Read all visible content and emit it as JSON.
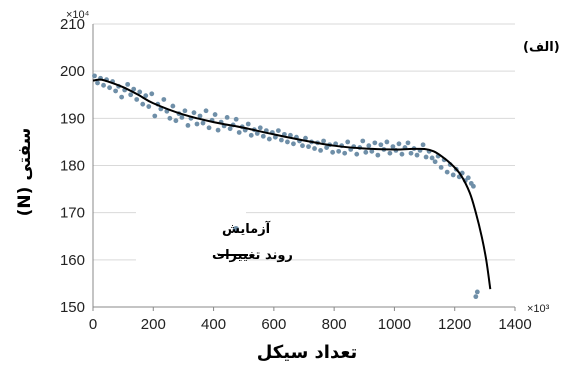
{
  "chart_data": {
    "type": "scatter",
    "title": "",
    "panel_label": "(الف)",
    "xlabel": "تعداد سیکل",
    "ylabel": "سفتی (N)",
    "x_multiplier": "×10³",
    "y_multiplier": "×10⁴",
    "xlim": [
      0,
      1400
    ],
    "ylim": [
      150,
      210
    ],
    "x_ticks": [
      "0",
      "200",
      "400",
      "600",
      "800",
      "1000",
      "1200",
      "1400"
    ],
    "y_ticks": [
      "150",
      "160",
      "170",
      "180",
      "190",
      "200",
      "210"
    ],
    "grid": "horizontal",
    "legend_position": "lower-left",
    "colors": {
      "points": "#6f8fa8",
      "trend": "#000000",
      "grid": "#d9d9d9"
    },
    "series": [
      {
        "name": "آزمایش",
        "kind": "scatter",
        "x": [
          5,
          15,
          25,
          35,
          45,
          55,
          65,
          75,
          85,
          95,
          105,
          115,
          125,
          135,
          145,
          155,
          165,
          175,
          185,
          195,
          205,
          215,
          225,
          235,
          245,
          255,
          265,
          275,
          285,
          295,
          305,
          315,
          325,
          335,
          345,
          355,
          365,
          375,
          385,
          395,
          405,
          415,
          425,
          435,
          445,
          455,
          465,
          475,
          485,
          495,
          505,
          515,
          525,
          535,
          545,
          555,
          565,
          575,
          585,
          595,
          605,
          615,
          625,
          635,
          645,
          655,
          665,
          675,
          685,
          695,
          705,
          715,
          725,
          735,
          745,
          755,
          765,
          775,
          785,
          795,
          805,
          815,
          825,
          835,
          845,
          855,
          865,
          875,
          885,
          895,
          905,
          915,
          925,
          935,
          945,
          955,
          965,
          975,
          985,
          995,
          1005,
          1015,
          1025,
          1035,
          1045,
          1055,
          1065,
          1075,
          1085,
          1095,
          1105,
          1115,
          1125,
          1135,
          1145,
          1155,
          1165,
          1175,
          1185,
          1195,
          1205,
          1215,
          1225,
          1235,
          1245,
          1255,
          1262,
          1270,
          1275
        ],
        "y": [
          199.0,
          197.5,
          198.5,
          197.0,
          198.2,
          196.5,
          197.8,
          195.8,
          196.8,
          194.5,
          196.0,
          197.2,
          195.0,
          196.2,
          194.0,
          195.6,
          193.0,
          194.8,
          192.5,
          195.2,
          190.5,
          193.0,
          192.0,
          194.0,
          191.5,
          190.0,
          192.6,
          189.5,
          191.0,
          190.2,
          191.6,
          188.5,
          190.0,
          191.2,
          188.8,
          190.5,
          189.0,
          191.6,
          188.0,
          189.6,
          190.8,
          187.5,
          189.2,
          188.4,
          190.2,
          187.8,
          188.6,
          189.8,
          187.0,
          188.2,
          187.5,
          188.8,
          186.4,
          187.6,
          186.8,
          188.0,
          186.2,
          187.4,
          185.6,
          187.0,
          186.0,
          187.4,
          185.4,
          186.6,
          185.0,
          186.4,
          184.6,
          186.0,
          185.2,
          184.2,
          185.8,
          184.0,
          185.0,
          183.6,
          184.8,
          183.2,
          185.2,
          183.8,
          184.4,
          182.8,
          184.6,
          183.0,
          184.2,
          182.6,
          185.0,
          183.4,
          184.0,
          182.4,
          183.8,
          185.2,
          182.8,
          184.2,
          183.0,
          184.8,
          182.2,
          184.4,
          183.4,
          185.0,
          182.6,
          184.0,
          183.2,
          184.6,
          182.4,
          183.8,
          184.8,
          182.6,
          183.6,
          182.2,
          183.2,
          184.4,
          181.8,
          183.0,
          181.6,
          180.8,
          182.0,
          179.6,
          181.2,
          178.6,
          180.2,
          178.0,
          179.2,
          177.6,
          178.4,
          176.8,
          177.4,
          176.2,
          175.6,
          152.2,
          153.2
        ]
      },
      {
        "name": "روند تغییرات",
        "kind": "line",
        "x": [
          0,
          25,
          50,
          100,
          150,
          200,
          300,
          400,
          500,
          600,
          700,
          800,
          900,
          1000,
          1050,
          1100,
          1130,
          1160,
          1190,
          1220,
          1250,
          1270,
          1290,
          1305,
          1318
        ],
        "y": [
          198.0,
          198.2,
          197.8,
          196.6,
          195.0,
          193.2,
          190.8,
          189.2,
          188.0,
          186.6,
          185.3,
          184.2,
          183.6,
          183.4,
          183.5,
          183.5,
          183.0,
          181.8,
          180.2,
          178.0,
          174.2,
          170.0,
          164.8,
          159.8,
          153.8
        ]
      }
    ]
  }
}
